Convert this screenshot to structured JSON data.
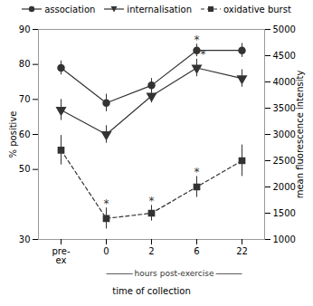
{
  "chart_data": {
    "type": "line",
    "categories": [
      "pre-\nex",
      "0",
      "2",
      "6",
      "22"
    ],
    "x_label": "time of collection",
    "y_label": "% positive",
    "y2_label": "mean fluorescence intensity",
    "ylim": [
      30,
      90
    ],
    "yticks": [
      30,
      50,
      60,
      70,
      80,
      90
    ],
    "y2lim": [
      1000,
      5000
    ],
    "y2ticks": [
      1000,
      1500,
      2000,
      2500,
      3000,
      3500,
      4000,
      4500,
      5000
    ],
    "color": "#333333",
    "grid": false,
    "legend": "top",
    "series": [
      {
        "name": "association",
        "values": [
          79,
          69,
          74,
          84,
          84
        ],
        "errors": [
          2.0,
          2.5,
          2.0,
          1.8,
          2.0
        ],
        "marker": "circle",
        "line_style": "solid"
      },
      {
        "name": "internalisation",
        "values": [
          67,
          60,
          71,
          79,
          76
        ],
        "errors": [
          3.0,
          2.5,
          2.0,
          2.5,
          2.5
        ],
        "marker": "triangle-down",
        "line_style": "solid"
      },
      {
        "name": "oxidative burst",
        "axis": "y2",
        "values": [
          2700,
          1400,
          1500,
          2000,
          2500
        ],
        "errors": [
          280,
          200,
          150,
          200,
          300
        ],
        "marker": "square",
        "line_style": "dashed"
      }
    ],
    "annotations": [
      {
        "text": "*",
        "series": "association",
        "category": "6"
      },
      {
        "text": "*",
        "series": "internalisation",
        "category": "6"
      },
      {
        "text": "*",
        "series": "oxidative burst",
        "category": "0"
      },
      {
        "text": "*",
        "series": "oxidative burst",
        "category": "2"
      },
      {
        "text": "*",
        "series": "oxidative burst",
        "category": "6"
      },
      {
        "text": "hours post-exercise",
        "from": "0",
        "to": "22"
      }
    ]
  }
}
